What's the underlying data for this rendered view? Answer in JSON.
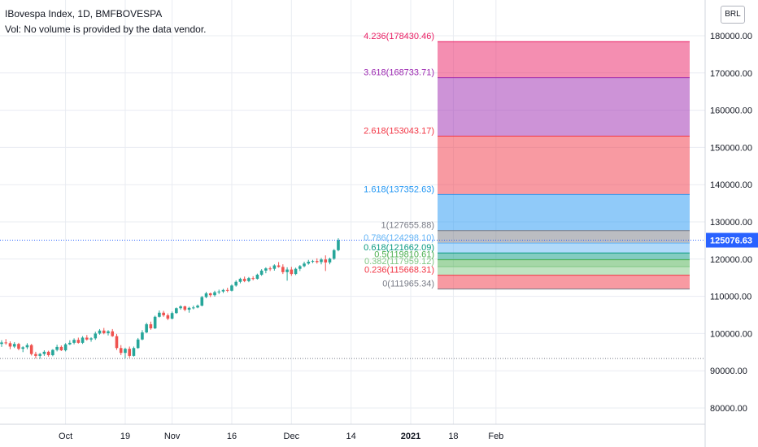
{
  "legend": {
    "symbol_line": "IBovespa Index, 1D, BMFBOVESPA",
    "volume_line": "Vol: No volume is provided by the data vendor."
  },
  "currency_button": "BRL",
  "colors": {
    "up": "#26a69a",
    "down": "#ef5350",
    "grid": "#e9ecf2",
    "axis_text": "#131722",
    "last_price_bg": "#2962ff"
  },
  "chart_data": {
    "type": "candlestick",
    "ylim": [
      75000,
      185000
    ],
    "y_ticks": [
      80000,
      90000,
      100000,
      110000,
      120000,
      130000,
      140000,
      150000,
      160000,
      170000,
      180000
    ],
    "y_tick_labels": [
      "80000.00",
      "90000.00",
      "100000.00",
      "110000.00",
      "120000.00",
      "130000.00",
      "140000.00",
      "150000.00",
      "160000.00",
      "170000.00",
      "180000.00"
    ],
    "x_ticks": [
      {
        "label": "Oct",
        "bar": 15
      },
      {
        "label": "19",
        "bar": 29
      },
      {
        "label": "Nov",
        "bar": 40
      },
      {
        "label": "16",
        "bar": 54
      },
      {
        "label": "Dec",
        "bar": 68
      },
      {
        "label": "14",
        "bar": 82
      },
      {
        "label": "2021",
        "bar": 96
      },
      {
        "label": "18",
        "bar": 106
      },
      {
        "label": "Feb",
        "bar": 116
      }
    ],
    "last_price": 125076.63,
    "last_price_label": "125076.63",
    "reference_line": 93300,
    "ohlc": [
      [
        97200,
        98200,
        96400,
        97600
      ],
      [
        97600,
        98500,
        97000,
        97400
      ],
      [
        97400,
        97900,
        95800,
        96500
      ],
      [
        96500,
        97700,
        96100,
        97200
      ],
      [
        97200,
        97500,
        95500,
        95900
      ],
      [
        95900,
        96600,
        95000,
        96300
      ],
      [
        96300,
        97400,
        95800,
        96900
      ],
      [
        96900,
        97200,
        94100,
        94500
      ],
      [
        94500,
        95100,
        93300,
        94000
      ],
      [
        94000,
        94800,
        93200,
        94500
      ],
      [
        94500,
        95500,
        94000,
        95100
      ],
      [
        95100,
        95400,
        93800,
        94200
      ],
      [
        94200,
        95800,
        93900,
        95600
      ],
      [
        95600,
        97000,
        95200,
        96400
      ],
      [
        96400,
        96800,
        95300,
        95500
      ],
      [
        95500,
        97400,
        95200,
        97100
      ],
      [
        97100,
        98200,
        96900,
        97500
      ],
      [
        97500,
        98700,
        97100,
        98300
      ],
      [
        98300,
        98900,
        97300,
        97500
      ],
      [
        97500,
        99300,
        97200,
        98900
      ],
      [
        98900,
        99600,
        98100,
        98400
      ],
      [
        98400,
        99000,
        97800,
        98700
      ],
      [
        98700,
        100500,
        98300,
        100000
      ],
      [
        100000,
        101200,
        99700,
        100800
      ],
      [
        100800,
        101500,
        99800,
        100100
      ],
      [
        100100,
        100900,
        99500,
        100600
      ],
      [
        100600,
        101200,
        99100,
        99300
      ],
      [
        99300,
        99900,
        95600,
        96100
      ],
      [
        96100,
        96900,
        94200,
        94800
      ],
      [
        94800,
        96200,
        93300,
        95900
      ],
      [
        95900,
        96500,
        93500,
        94000
      ],
      [
        94000,
        96500,
        93800,
        96100
      ],
      [
        96100,
        98800,
        95900,
        98400
      ],
      [
        98400,
        100900,
        98200,
        100300
      ],
      [
        100300,
        102900,
        100100,
        102500
      ],
      [
        102500,
        103200,
        101000,
        101400
      ],
      [
        101400,
        104800,
        101200,
        104500
      ],
      [
        104500,
        106200,
        104300,
        105600
      ],
      [
        105600,
        106100,
        104500,
        104900
      ],
      [
        104900,
        105400,
        103600,
        104000
      ],
      [
        104000,
        105900,
        103800,
        105500
      ],
      [
        105500,
        107000,
        105300,
        106800
      ],
      [
        106800,
        107600,
        106400,
        107300
      ],
      [
        107300,
        107500,
        106000,
        106400
      ],
      [
        106400,
        107200,
        105600,
        106900
      ],
      [
        106900,
        107500,
        106500,
        107000
      ],
      [
        107000,
        107800,
        106800,
        107500
      ],
      [
        107500,
        110100,
        107300,
        109800
      ],
      [
        109800,
        111200,
        109500,
        110800
      ],
      [
        110800,
        111000,
        109800,
        110300
      ],
      [
        110300,
        111500,
        109900,
        111100
      ],
      [
        111100,
        111800,
        110600,
        111300
      ],
      [
        111300,
        112000,
        110900,
        111700
      ],
      [
        111700,
        112300,
        111100,
        111500
      ],
      [
        111500,
        113200,
        111300,
        112900
      ],
      [
        112900,
        114300,
        112600,
        113900
      ],
      [
        113900,
        115000,
        113500,
        114700
      ],
      [
        114700,
        115300,
        113800,
        114100
      ],
      [
        114100,
        115200,
        113800,
        114900
      ],
      [
        114900,
        115400,
        114300,
        114700
      ],
      [
        114700,
        116100,
        114500,
        115800
      ],
      [
        115800,
        117300,
        115500,
        116900
      ],
      [
        116900,
        117800,
        116200,
        117500
      ],
      [
        117500,
        118000,
        116800,
        117400
      ],
      [
        117400,
        118600,
        116900,
        118300
      ],
      [
        118300,
        119200,
        117700,
        117900
      ],
      [
        117900,
        118600,
        116000,
        116500
      ],
      [
        116500,
        117800,
        114200,
        117200
      ],
      [
        117200,
        117900,
        115500,
        116000
      ],
      [
        116000,
        117700,
        115700,
        117400
      ],
      [
        117400,
        118400,
        116800,
        118100
      ],
      [
        118100,
        119300,
        117800,
        118800
      ],
      [
        118800,
        119800,
        118500,
        119300
      ],
      [
        119300,
        119800,
        118900,
        119500
      ],
      [
        119500,
        120200,
        118800,
        119200
      ],
      [
        119200,
        120300,
        118600,
        119900
      ],
      [
        119900,
        121000,
        116800,
        119100
      ],
      [
        119100,
        120400,
        118600,
        120100
      ],
      [
        120100,
        122700,
        119800,
        122400
      ],
      [
        122400,
        125600,
        122100,
        125076.63
      ]
    ]
  },
  "fibonacci": {
    "levels": [
      {
        "ratio": 4.236,
        "price": 178430.46,
        "label": "4.236(178430.46)",
        "color": "#e91e63"
      },
      {
        "ratio": 3.618,
        "price": 168733.71,
        "label": "3.618(168733.71)",
        "color": "#9c27b0"
      },
      {
        "ratio": 2.618,
        "price": 153043.17,
        "label": "2.618(153043.17)",
        "color": "#f23645"
      },
      {
        "ratio": 1.618,
        "price": 137352.63,
        "label": "1.618(137352.63)",
        "color": "#2196f3"
      },
      {
        "ratio": 1,
        "price": 127655.88,
        "label": "1(127655.88)",
        "color": "#787b86"
      },
      {
        "ratio": 0.786,
        "price": 124298.1,
        "label": "0.786(124298.10)",
        "color": "#64b5f6"
      },
      {
        "ratio": 0.618,
        "price": 121662.09,
        "label": "0.618(121662.09)",
        "color": "#089981"
      },
      {
        "ratio": 0.5,
        "price": 119810.61,
        "label": "0.5(119810.61)",
        "color": "#4caf50"
      },
      {
        "ratio": 0.382,
        "price": 117959.12,
        "label": "0.382(117959.12)",
        "color": "#81c784"
      },
      {
        "ratio": 0.236,
        "price": 115668.31,
        "label": "0.236(115668.31)",
        "color": "#f23645"
      },
      {
        "ratio": 0,
        "price": 111965.34,
        "label": "0(111965.34)",
        "color": "#787b86"
      }
    ]
  }
}
